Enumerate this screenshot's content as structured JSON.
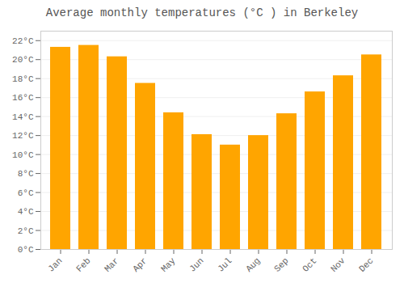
{
  "chart_data": {
    "type": "bar",
    "title": "Average monthly temperatures (°C ) in Berkeley",
    "categories": [
      "Jan",
      "Feb",
      "Mar",
      "Apr",
      "May",
      "Jun",
      "Jul",
      "Aug",
      "Sep",
      "Oct",
      "Nov",
      "Dec"
    ],
    "values": [
      21.3,
      21.5,
      20.3,
      17.5,
      14.4,
      12.1,
      11.0,
      12.0,
      14.3,
      16.6,
      18.3,
      20.5
    ],
    "color": "#FFA500",
    "ylim": [
      0,
      23
    ],
    "yticks": [
      {
        "value": 0,
        "label": "0°C"
      },
      {
        "value": 2,
        "label": "2°C"
      },
      {
        "value": 4,
        "label": "4°C"
      },
      {
        "value": 6,
        "label": "6°C"
      },
      {
        "value": 8,
        "label": "8°C"
      },
      {
        "value": 10,
        "label": "10°C"
      },
      {
        "value": 12,
        "label": "12°C"
      },
      {
        "value": 14,
        "label": "14°C"
      },
      {
        "value": 16,
        "label": "16°C"
      },
      {
        "value": 18,
        "label": "18°C"
      },
      {
        "value": 20,
        "label": "20°C"
      },
      {
        "value": 22,
        "label": "22°C"
      }
    ],
    "grid": true
  }
}
